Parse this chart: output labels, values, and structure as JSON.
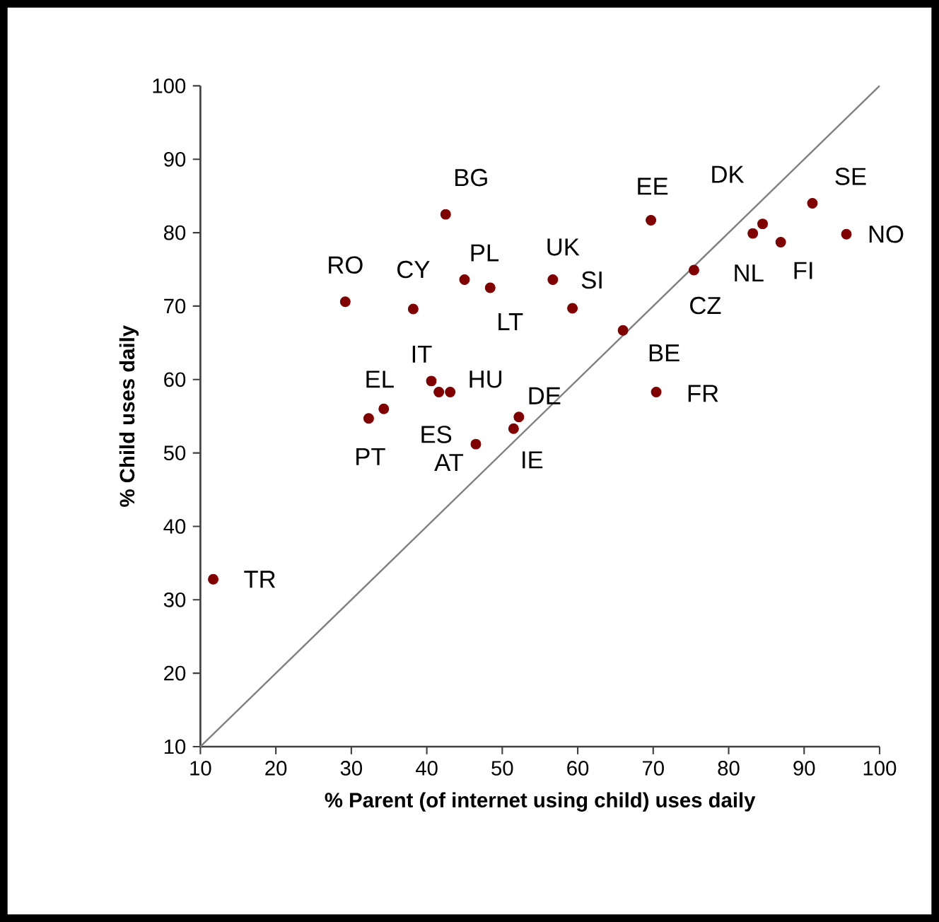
{
  "chart_data": {
    "type": "scatter",
    "xlabel": "% Parent (of internet using child) uses daily",
    "ylabel": "% Child uses daily",
    "xlim": [
      10,
      100
    ],
    "ylim": [
      10,
      100
    ],
    "xticks": [
      10,
      20,
      30,
      40,
      50,
      60,
      70,
      80,
      90,
      100
    ],
    "yticks": [
      10,
      20,
      30,
      40,
      50,
      60,
      70,
      80,
      90,
      100
    ],
    "marker": "circle",
    "series": [
      {
        "color": "#800000",
        "x": [
          11.7,
          29.2,
          32.3,
          34.3,
          38.2,
          40.6,
          41.6,
          43.1,
          42.5,
          45.0,
          46.5,
          48.4,
          51.5,
          52.2,
          56.7,
          59.3,
          66.0,
          69.7,
          70.4,
          75.4,
          83.2,
          84.5,
          86.9,
          91.1,
          95.6
        ],
        "values": [
          32.8,
          70.6,
          54.7,
          56.0,
          69.6,
          59.8,
          58.3,
          58.3,
          82.5,
          73.6,
          51.2,
          72.5,
          53.3,
          54.9,
          73.6,
          69.7,
          66.7,
          81.7,
          58.3,
          74.9,
          79.9,
          81.2,
          78.7,
          84.0,
          79.8
        ],
        "value_labels": [
          "TR",
          "RO",
          "PT",
          "EL",
          "CY",
          "IT",
          "ES",
          "HU",
          "BG",
          "PL",
          "AT",
          "LT",
          "IE",
          "DE",
          "UK",
          "SI",
          "BE",
          "EE",
          "FR",
          "CZ",
          "NL",
          "DK",
          "FI",
          "SE",
          "NO"
        ]
      },
      {
        "type": "line",
        "color": "#808080",
        "marker": "none",
        "x": [
          10,
          100
        ],
        "values": [
          10,
          100
        ]
      }
    ]
  }
}
